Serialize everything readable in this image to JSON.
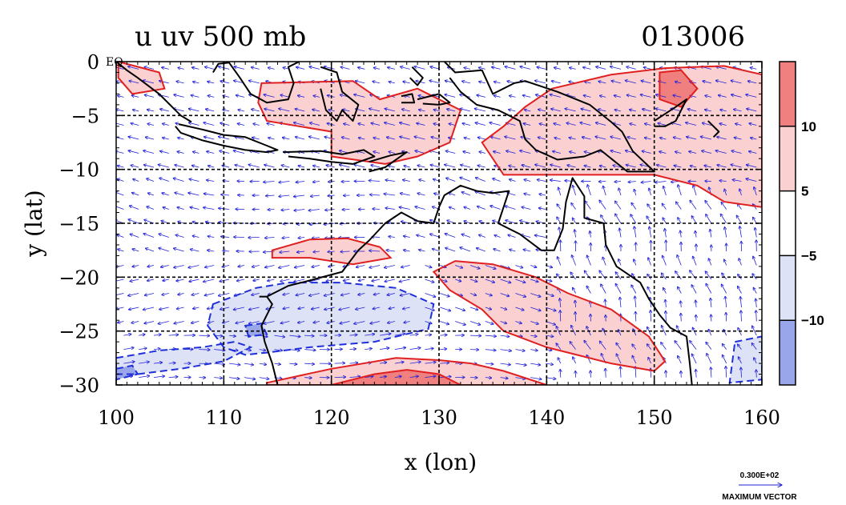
{
  "chart_data": {
    "type": "heatmap",
    "title": "u uv 500 mb",
    "title_right": "013006",
    "xlabel": "x (lon)",
    "ylabel": "y (lat)",
    "xlim": [
      100,
      160
    ],
    "ylim": [
      -30,
      0
    ],
    "xticks": [
      100,
      110,
      120,
      130,
      140,
      150,
      160
    ],
    "xtick_labels": [
      "100",
      "110",
      "120",
      "130",
      "140",
      "150",
      "160"
    ],
    "yticks": [
      0,
      -5,
      -10,
      -15,
      -20,
      -25,
      -30
    ],
    "ytick_labels": [
      "0",
      "−5",
      "−10",
      "−15",
      "−20",
      "−25",
      "−30"
    ],
    "y0_suffix": "EQ",
    "grid": true,
    "colorbar": {
      "labels": [
        "10",
        "5",
        "−5",
        "−10"
      ],
      "levels": [
        {
          "min": 10,
          "max": 15,
          "color": "#f08080"
        },
        {
          "min": 5,
          "max": 10,
          "color": "#fad0d0"
        },
        {
          "min": -5,
          "max": 5,
          "color": "#ffffff"
        },
        {
          "min": -10,
          "max": -5,
          "color": "#dde2f7"
        },
        {
          "min": -15,
          "max": -10,
          "color": "#9aa6ea"
        }
      ]
    },
    "regions": [
      {
        "sign": "pos",
        "level": 5,
        "points": [
          [
            100.2,
            0
          ],
          [
            104,
            -1
          ],
          [
            104.5,
            -2.5
          ],
          [
            101.5,
            -3
          ],
          [
            100.2,
            -1.5
          ]
        ]
      },
      {
        "sign": "pos",
        "level": 5,
        "points": [
          [
            113.5,
            -2
          ],
          [
            122,
            -1.8
          ],
          [
            124.5,
            -3.5
          ],
          [
            128,
            -2.5
          ],
          [
            132,
            -4.5
          ],
          [
            131,
            -7.5
          ],
          [
            128,
            -8.8
          ],
          [
            125,
            -9.5
          ],
          [
            120,
            -8.8
          ],
          [
            120,
            -6.5
          ],
          [
            117,
            -6
          ],
          [
            114,
            -5.5
          ],
          [
            113.2,
            -3.8
          ]
        ]
      },
      {
        "sign": "pos",
        "level": 5,
        "points": [
          [
            140.5,
            -2.5
          ],
          [
            146,
            -1.2
          ],
          [
            151,
            -0.6
          ],
          [
            156.5,
            -0.4
          ],
          [
            160,
            -1.2
          ],
          [
            160,
            -13.5
          ],
          [
            156.5,
            -13
          ],
          [
            154,
            -11.5
          ],
          [
            150,
            -10.5
          ],
          [
            146,
            -10.5
          ],
          [
            140,
            -10.5
          ],
          [
            136,
            -10.5
          ],
          [
            134,
            -7.5
          ],
          [
            136,
            -6
          ],
          [
            138,
            -4.2
          ]
        ]
      },
      {
        "sign": "pos",
        "level": 5,
        "points": [
          [
            114.5,
            -17.5
          ],
          [
            118,
            -16.5
          ],
          [
            121.5,
            -16.4
          ],
          [
            124.5,
            -17.2
          ],
          [
            125.5,
            -18.2
          ],
          [
            122,
            -18.8
          ],
          [
            118,
            -18.2
          ],
          [
            114.5,
            -18.2
          ]
        ]
      },
      {
        "sign": "pos",
        "level": 5,
        "points": [
          [
            129.5,
            -19.5
          ],
          [
            131.5,
            -18.5
          ],
          [
            135,
            -18.8
          ],
          [
            139,
            -20
          ],
          [
            142,
            -21.5
          ],
          [
            146,
            -23
          ],
          [
            149.5,
            -25.5
          ],
          [
            151,
            -27.8
          ],
          [
            150,
            -28.7
          ],
          [
            146,
            -28
          ],
          [
            140,
            -26.5
          ],
          [
            136,
            -25
          ],
          [
            134,
            -23
          ],
          [
            131,
            -21.2
          ]
        ]
      },
      {
        "sign": "pos",
        "level": 5,
        "points": [
          [
            114,
            -29.8
          ],
          [
            120,
            -28.5
          ],
          [
            126,
            -27.5
          ],
          [
            130,
            -27.7
          ],
          [
            133,
            -28
          ],
          [
            136,
            -28.7
          ],
          [
            140,
            -30
          ],
          [
            114,
            -30
          ]
        ]
      },
      {
        "sign": "pos",
        "level": 10,
        "points": [
          [
            120,
            -30
          ],
          [
            124,
            -29
          ],
          [
            127,
            -28.6
          ],
          [
            130,
            -29
          ],
          [
            132,
            -30
          ]
        ]
      },
      {
        "sign": "pos",
        "level": 10,
        "points": [
          [
            150.5,
            -1
          ],
          [
            152.5,
            -0.8
          ],
          [
            154,
            -2.5
          ],
          [
            152.5,
            -4.2
          ],
          [
            150.5,
            -3.5
          ]
        ]
      },
      {
        "sign": "neg",
        "level": -5,
        "points": [
          [
            109,
            -22.5
          ],
          [
            113,
            -21
          ],
          [
            116,
            -20.5
          ],
          [
            121,
            -20.5
          ],
          [
            126,
            -21
          ],
          [
            129.5,
            -22.5
          ],
          [
            129,
            -24.8
          ],
          [
            124,
            -26
          ],
          [
            118,
            -26.5
          ],
          [
            114,
            -27
          ],
          [
            112,
            -27.2
          ],
          [
            110,
            -26.5
          ],
          [
            108.5,
            -24.5
          ]
        ]
      },
      {
        "sign": "neg",
        "level": -5,
        "points": [
          [
            100,
            -27.5
          ],
          [
            104,
            -26.8
          ],
          [
            108,
            -26.5
          ],
          [
            111,
            -26
          ],
          [
            112.5,
            -26.5
          ],
          [
            110,
            -27.8
          ],
          [
            106,
            -28.5
          ],
          [
            102,
            -29
          ],
          [
            100,
            -29
          ]
        ]
      },
      {
        "sign": "neg",
        "level": -5,
        "points": [
          [
            157.5,
            -26
          ],
          [
            160,
            -25.5
          ],
          [
            160,
            -29.5
          ],
          [
            157,
            -29.8
          ]
        ]
      },
      {
        "sign": "neg",
        "level": -10,
        "points": [
          [
            100,
            -28.5
          ],
          [
            101.5,
            -28.2
          ],
          [
            102,
            -29
          ],
          [
            100,
            -29.5
          ]
        ]
      },
      {
        "sign": "neg",
        "level": -10,
        "points": [
          [
            112,
            -24.5
          ],
          [
            113.5,
            -24.3
          ],
          [
            114,
            -25.3
          ],
          [
            112.3,
            -25.5
          ]
        ]
      }
    ],
    "coastlines": [
      [
        [
          100,
          0
        ],
        [
          101,
          -0.8
        ],
        [
          102,
          -1.5
        ],
        [
          104,
          -3
        ],
        [
          106,
          -5
        ],
        [
          107,
          -5.6
        ]
      ],
      [
        [
          105.8,
          -5.8
        ],
        [
          108,
          -6.3
        ],
        [
          110,
          -6.8
        ],
        [
          112,
          -7
        ],
        [
          114,
          -7.8
        ],
        [
          115,
          -8.2
        ],
        [
          114,
          -8.4
        ],
        [
          112,
          -8.2
        ],
        [
          110,
          -7.8
        ],
        [
          108,
          -7.3
        ],
        [
          106,
          -6.6
        ],
        [
          105.5,
          -6
        ]
      ],
      [
        [
          115.5,
          -8.4
        ],
        [
          119,
          -8.3
        ],
        [
          121,
          -8.6
        ],
        [
          123,
          -8.2
        ],
        [
          124,
          -8.8
        ],
        [
          122,
          -9.5
        ],
        [
          120,
          -9.3
        ],
        [
          118,
          -9
        ],
        [
          116,
          -8.8
        ]
      ],
      [
        [
          123.5,
          -9.3
        ],
        [
          125.5,
          -8.7
        ],
        [
          127,
          -8.4
        ],
        [
          125,
          -9.8
        ],
        [
          123.5,
          -10.2
        ]
      ],
      [
        [
          109,
          -1
        ],
        [
          109.5,
          -0.2
        ],
        [
          110.5,
          -0.1
        ],
        [
          111.5,
          -1.5
        ],
        [
          112.5,
          -3
        ],
        [
          114,
          -3.8
        ],
        [
          116,
          -3.5
        ],
        [
          116.5,
          -2
        ],
        [
          116,
          -0.5
        ],
        [
          117,
          0
        ]
      ],
      [
        [
          119,
          -0.5
        ],
        [
          120.5,
          -1
        ],
        [
          121,
          -2.8
        ],
        [
          122.5,
          -4
        ],
        [
          122,
          -5.5
        ],
        [
          121,
          -4.5
        ],
        [
          120.5,
          -5.5
        ],
        [
          119.5,
          -4.5
        ],
        [
          119,
          -2.5
        ]
      ],
      [
        [
          127.5,
          -0.5
        ],
        [
          128.5,
          -1.5
        ],
        [
          128,
          -2.2
        ],
        [
          127.3,
          -1.5
        ]
      ],
      [
        [
          126.5,
          -3.2
        ],
        [
          127.5,
          -3
        ],
        [
          127.7,
          -3.8
        ],
        [
          126.5,
          -3.8
        ]
      ],
      [
        [
          128,
          -3.5
        ],
        [
          130,
          -3
        ],
        [
          131,
          -3.8
        ],
        [
          130,
          -4
        ],
        [
          128.5,
          -3.9
        ]
      ],
      [
        [
          130.5,
          0
        ],
        [
          131.5,
          -1
        ],
        [
          134,
          -0.8
        ],
        [
          135,
          -3
        ],
        [
          137,
          -2
        ],
        [
          138,
          -1.8
        ],
        [
          141,
          -2.8
        ],
        [
          144,
          -4
        ],
        [
          146,
          -5.6
        ],
        [
          147,
          -6.5
        ],
        [
          148,
          -8.3
        ],
        [
          150,
          -10.2
        ],
        [
          147.5,
          -10.2
        ],
        [
          145,
          -8.2
        ],
        [
          143.5,
          -8.8
        ],
        [
          141,
          -9.1
        ],
        [
          139,
          -8.2
        ],
        [
          138,
          -7.2
        ],
        [
          137.5,
          -5.5
        ],
        [
          135.5,
          -4.5
        ],
        [
          133.5,
          -4
        ],
        [
          132,
          -2.8
        ],
        [
          131,
          -1.5
        ]
      ],
      [
        [
          150,
          -5.5
        ],
        [
          152,
          -4.2
        ],
        [
          153,
          -3.5
        ],
        [
          152,
          -5.5
        ],
        [
          151,
          -6
        ],
        [
          150,
          -6
        ]
      ],
      [
        [
          155,
          -5.5
        ],
        [
          156,
          -6.5
        ],
        [
          155.5,
          -7
        ]
      ],
      [
        [
          113.3,
          -21.8
        ],
        [
          114,
          -21.8
        ],
        [
          114.5,
          -22.5
        ],
        [
          113.5,
          -24.5
        ],
        [
          113.8,
          -26
        ],
        [
          114.5,
          -28
        ],
        [
          115,
          -30
        ]
      ],
      [
        [
          114,
          -21.8
        ],
        [
          116,
          -20.8
        ],
        [
          118,
          -20.3
        ],
        [
          121,
          -19.5
        ],
        [
          122.5,
          -17.5
        ],
        [
          123.5,
          -16.6
        ],
        [
          125,
          -15
        ],
        [
          126.5,
          -14
        ],
        [
          128,
          -14.8
        ],
        [
          129.5,
          -15
        ],
        [
          130,
          -13.5
        ],
        [
          130.5,
          -12.4
        ],
        [
          132,
          -11.5
        ],
        [
          133.5,
          -12
        ],
        [
          135,
          -12.2
        ],
        [
          136.5,
          -12
        ],
        [
          136,
          -13.5
        ],
        [
          135.5,
          -15
        ],
        [
          137.5,
          -16
        ],
        [
          139.5,
          -17.5
        ],
        [
          140.7,
          -17.5
        ],
        [
          141.5,
          -15.5
        ],
        [
          141.8,
          -13
        ],
        [
          142.4,
          -10.8
        ],
        [
          143.5,
          -12.5
        ],
        [
          143.5,
          -14.5
        ],
        [
          145.3,
          -15
        ],
        [
          145.5,
          -17
        ],
        [
          146.5,
          -19
        ],
        [
          148.7,
          -20.5
        ],
        [
          149.5,
          -22
        ],
        [
          150.5,
          -23.5
        ],
        [
          151.5,
          -24.7
        ],
        [
          153,
          -25.5
        ],
        [
          153.3,
          -28
        ],
        [
          153.5,
          -30
        ]
      ]
    ],
    "vector_reference": {
      "value": "0.300E+02",
      "label": "MAXIMUM VECTOR"
    }
  }
}
